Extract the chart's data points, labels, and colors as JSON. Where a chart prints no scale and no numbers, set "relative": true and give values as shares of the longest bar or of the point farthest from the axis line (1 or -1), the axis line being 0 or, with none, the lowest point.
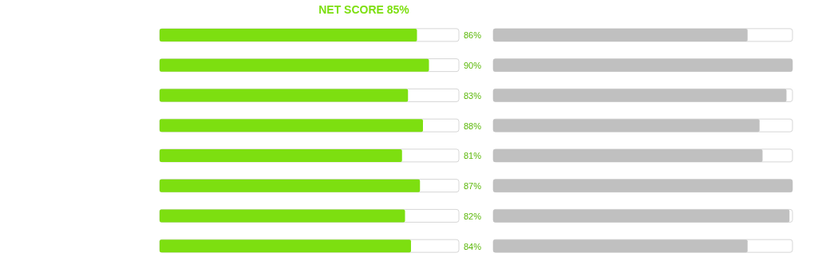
{
  "chart_data": [
    {
      "type": "bar",
      "title": "NET SCORE 85%",
      "orientation": "horizontal",
      "categories": [
        null,
        null,
        null,
        null,
        null,
        null,
        null,
        null
      ],
      "values": [
        86,
        90,
        83,
        88,
        81,
        87,
        82,
        84
      ],
      "value_labels": [
        "86%",
        "90%",
        "83%",
        "88%",
        "81%",
        "87%",
        "82%",
        "84%"
      ],
      "color": "#7ddf10",
      "grid": false,
      "tick_labels": false
    },
    {
      "type": "bar",
      "orientation": "horizontal",
      "relative": true,
      "categories": [
        null,
        null,
        null,
        null,
        null,
        null,
        null,
        null
      ],
      "values": [
        0.85,
        1,
        0.98,
        0.89,
        0.9,
        1,
        0.99,
        0.85
      ],
      "color": "#c0c0c0",
      "grid": false
    }
  ]
}
